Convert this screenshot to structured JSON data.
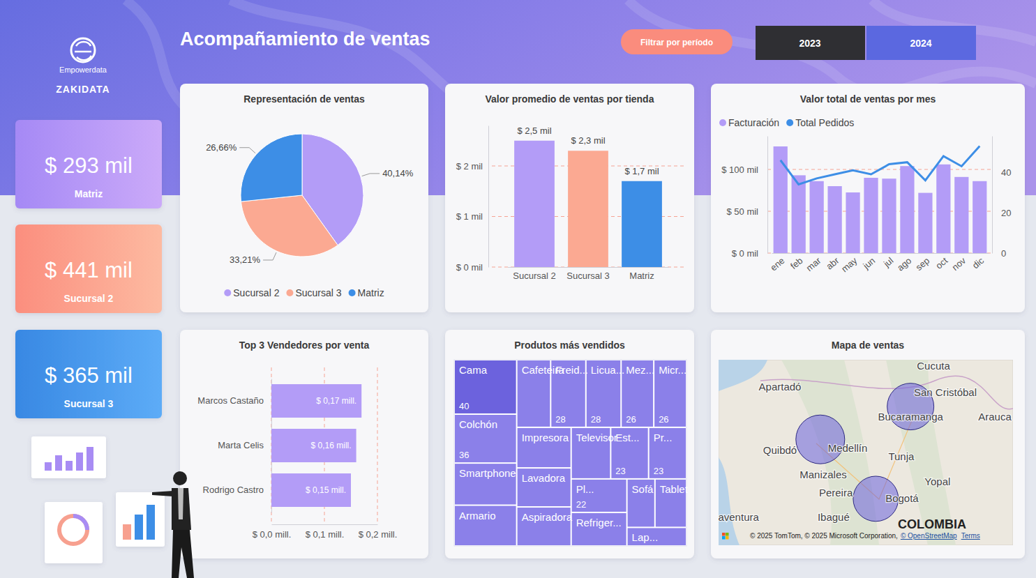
{
  "header": {
    "logo_text": "Empowerdata",
    "brand": "ZAKIDATA",
    "title": "Acompañamiento de ventas",
    "filter_button": "Filtrar por período",
    "years": [
      "2023",
      "2024"
    ]
  },
  "kpis": [
    {
      "value": "$ 293 mil",
      "label": "Matriz"
    },
    {
      "value": "$ 441 mil",
      "label": "Sucursal 2"
    },
    {
      "value": "$ 365 mil",
      "label": "Sucursal 3"
    }
  ],
  "chart_data": [
    {
      "type": "pie",
      "title": "Representación de ventas",
      "categories": [
        "Sucursal 2",
        "Sucursal 3",
        "Matriz"
      ],
      "values": [
        40.14,
        33.21,
        26.66
      ],
      "value_labels": [
        "40,14%",
        "33,21%",
        "26,66%"
      ],
      "colors": [
        "#b39cf7",
        "#fba992",
        "#3d8ee6"
      ],
      "data_labels": true,
      "legend": "bottom"
    },
    {
      "type": "bar",
      "title": "Valor promedio de ventas por tienda",
      "categories": [
        "Sucursal 2",
        "Sucursal 3",
        "Matriz"
      ],
      "values": [
        2.5,
        2.3,
        1.7
      ],
      "value_labels": [
        "$ 2,5 mil",
        "$ 2,3 mil",
        "$ 1,7 mil"
      ],
      "colors": [
        "#b39cf7",
        "#fba992",
        "#3d8ee6"
      ],
      "ylim": [
        0,
        2.8
      ],
      "yticks": [
        {
          "value": 0,
          "label": "$ 0 mil"
        },
        {
          "value": 1,
          "label": "$ 1 mil"
        },
        {
          "value": 2,
          "label": "$ 2 mil"
        }
      ],
      "grid": true,
      "data_labels": true
    },
    {
      "type": "combo",
      "title": "Valor total de ventas por mes",
      "categories": [
        "ene",
        "feb",
        "mar",
        "abr",
        "may",
        "jun",
        "jul",
        "ago",
        "sep",
        "oct",
        "nov",
        "dic"
      ],
      "series": [
        {
          "name": "Facturación",
          "type": "bar",
          "color": "#b39cf7",
          "values": [
            127.5,
            93,
            86,
            80,
            72.5,
            90,
            89,
            104,
            72,
            106,
            91,
            86
          ]
        },
        {
          "name": "Total Pedidos",
          "type": "line",
          "color": "#3d8ee6",
          "axis": "y2",
          "values": [
            46,
            34,
            37,
            39,
            41,
            39,
            44,
            45,
            36,
            48,
            43,
            53
          ]
        }
      ],
      "ylim": [
        0,
        140
      ],
      "yticks": [
        {
          "value": 0,
          "label": "$ 0 mil"
        },
        {
          "value": 50,
          "label": "$ 50 mil"
        },
        {
          "value": 100,
          "label": "$ 100 mil"
        }
      ],
      "y2lim": [
        0,
        58
      ],
      "y2ticks": [
        0,
        20,
        40
      ],
      "grid": true,
      "legend": "top-left"
    },
    {
      "type": "bar",
      "orientation": "horizontal",
      "title": "Top 3 Vendedores por venta",
      "categories": [
        "Marcos Castaño",
        "Marta Celis",
        "Rodrigo Castro"
      ],
      "values": [
        0.17,
        0.16,
        0.15
      ],
      "value_labels": [
        "$ 0,17 mill.",
        "$ 0,16 mill.",
        "$ 0,15 mill."
      ],
      "color": "#b39cf7",
      "xlim": [
        0,
        0.2
      ],
      "xticks": [
        {
          "value": 0,
          "label": "$ 0,0 mill."
        },
        {
          "value": 0.1,
          "label": "$ 0,1 mill."
        },
        {
          "value": 0.2,
          "label": "$ 0,2 mill."
        }
      ],
      "grid": true,
      "data_labels": true
    },
    {
      "type": "treemap",
      "title": "Produtos más vendidos",
      "categories": [
        "Cama",
        "Colchón",
        "Smartphone",
        "Armario",
        "Cafeteira",
        "Freid...",
        "Licua...",
        "Mez...",
        "Micr...",
        "Impresora",
        "Lavadora",
        "Aspiradora",
        "Televisor",
        "Est...",
        "Pr...",
        "Pl...",
        "Refriger...",
        "Sofá",
        "Tablet",
        "Lap..."
      ],
      "values": [
        40,
        36,
        31,
        30,
        27,
        28,
        28,
        26,
        26,
        26,
        25,
        25,
        24,
        23,
        23,
        22,
        22,
        16,
        18,
        13
      ],
      "value_labels": [
        "40",
        "36",
        null,
        null,
        null,
        "28",
        "28",
        "26",
        "26",
        null,
        null,
        null,
        null,
        "23",
        "23",
        "22",
        null,
        null,
        null,
        null
      ],
      "colors": [
        "#6c62dd",
        "#8b80e9",
        "#8b80e9",
        "#8b80e9",
        "#8b80e9",
        "#8b80e9",
        "#8b80e9",
        "#8b80e9",
        "#8b80e9",
        "#8b80e9",
        "#8b80e9",
        "#8b80e9",
        "#8b80e9",
        "#8b80e9",
        "#8b80e9",
        "#8b80e9",
        "#8b80e9",
        "#8b80e9",
        "#8b80e9",
        "#8b80e9"
      ],
      "data_labels": true
    },
    {
      "type": "map",
      "title": "Mapa de ventas",
      "xlim": [
        -78.29,
        -70.33
      ],
      "ylim": [
        3.35,
        8.66
      ],
      "tick_labels": false,
      "color": "#6c62dd",
      "x": [
        -75.54,
        -73.1,
        -74.04
      ],
      "values": [
        6.38,
        7.32,
        4.68
      ],
      "size": [
        35,
        32,
        30
      ],
      "places": [
        {
          "label": "Cucuta",
          "x": -72.48,
          "y": 8.5
        },
        {
          "label": "Apartadó",
          "x": -76.63,
          "y": 7.9
        },
        {
          "label": "San Cristóbal",
          "x": -72.16,
          "y": 7.74
        },
        {
          "label": "Bucaramanga",
          "x": -73.1,
          "y": 7.04
        },
        {
          "label": "Arauca",
          "x": -70.82,
          "y": 7.04
        },
        {
          "label": "Quibdó",
          "x": -76.63,
          "y": 6.08
        },
        {
          "label": "Medellín",
          "x": -74.8,
          "y": 6.14
        },
        {
          "label": "Tunja",
          "x": -73.35,
          "y": 5.9
        },
        {
          "label": "Manizales",
          "x": -75.46,
          "y": 5.38
        },
        {
          "label": "Yopal",
          "x": -72.37,
          "y": 5.18
        },
        {
          "label": "Pereira",
          "x": -75.12,
          "y": 4.86
        },
        {
          "label": "Bogotá",
          "x": -73.33,
          "y": 4.7
        },
        {
          "label": "Ibagué",
          "x": -75.18,
          "y": 4.16
        },
        {
          "label": "aventura",
          "x": -77.75,
          "y": 4.16
        }
      ],
      "country_label": {
        "label": "COLOMBIA",
        "x": -72.52,
        "y": 3.94
      },
      "attribution": "© 2025 TomTom, © 2025 Microsoft Corporation,",
      "attribution_link": "© OpenStreetMap",
      "terms": "Terms"
    }
  ]
}
